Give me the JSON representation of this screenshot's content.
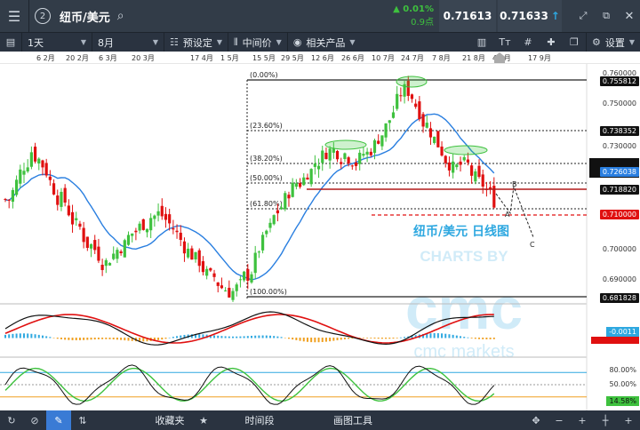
{
  "topbar": {
    "tab_number": "2",
    "symbol": "纽币/美元",
    "change_pct": "▲ 0.01%",
    "change_pts": "0.9点",
    "bid": "0.71613",
    "ask": "0.71633"
  },
  "toolbar": {
    "interval": "1天",
    "range": "8月",
    "preset": "预设定",
    "price_type": "中间价",
    "related": "相关产品",
    "settings": "设置"
  },
  "time_axis": [
    "6 2月",
    "20 2月",
    "6 3月",
    "20 3月",
    "17 4月",
    "1 5月",
    "15 5月",
    "29 5月",
    "12 6月",
    "26 6月",
    "10 7月",
    "24 7月",
    "7 8月",
    "21 8月",
    "4 9月",
    "17 9月"
  ],
  "fib_levels": [
    "(0.00%)",
    "(23.60%)",
    "(38.20%)",
    "(50.00%)",
    "(61.80%)",
    "(100.00%)"
  ],
  "price_axis": [
    "0.760000",
    "0.750000",
    "0.730000",
    "0.720000",
    "0.700000",
    "0.690000"
  ],
  "price_tags": {
    "high": "0.755812",
    "fib236": "0.738352",
    "ma": "0.726038",
    "current": "0.718820",
    "target": "0.710000",
    "low": "0.681828"
  },
  "annotation": {
    "title": "纽币/美元 日线图",
    "waves": [
      "A",
      "B",
      "C"
    ]
  },
  "watermark": {
    "line1": "CHARTS BY",
    "line3": "cmc markets"
  },
  "macd_tags": [
    "-0.0011"
  ],
  "stoch_axis": [
    "80.00%",
    "50.00%"
  ],
  "stoch_tag": "14.58%",
  "bottombar": {
    "favorites": "收藏夹",
    "timeframe": "时间段",
    "drawing": "画图工具"
  },
  "chart_data": {
    "type": "candlestick",
    "ylim": [
      0.681,
      0.762
    ],
    "close_path_desc": "NZD/USD daily",
    "closes": [
      0.716,
      0.722,
      0.728,
      0.733,
      0.73,
      0.726,
      0.72,
      0.716,
      0.712,
      0.707,
      0.703,
      0.7,
      0.697,
      0.694,
      0.697,
      0.7,
      0.703,
      0.705,
      0.708,
      0.71,
      0.711,
      0.709,
      0.706,
      0.702,
      0.698,
      0.695,
      0.692,
      0.689,
      0.687,
      0.685,
      0.684,
      0.686,
      0.69,
      0.695,
      0.701,
      0.706,
      0.712,
      0.716,
      0.72,
      0.722,
      0.726,
      0.729,
      0.731,
      0.733,
      0.733,
      0.732,
      0.73,
      0.73,
      0.732,
      0.735,
      0.739,
      0.744,
      0.75,
      0.754,
      0.752,
      0.747,
      0.742,
      0.737,
      0.733,
      0.729,
      0.727,
      0.728,
      0.725,
      0.722,
      0.719,
      0.716
    ]
  }
}
